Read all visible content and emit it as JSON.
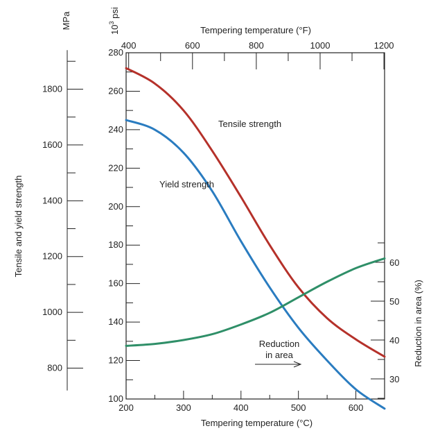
{
  "chart_data": {
    "type": "line",
    "x_bottom": {
      "label": "Tempering temperature (°C)",
      "range": [
        200,
        650
      ],
      "ticks": [
        200,
        300,
        400,
        500,
        600
      ]
    },
    "x_top": {
      "label": "Tempering temperature (°F)",
      "ticks": [
        400,
        600,
        800,
        1000,
        1200
      ]
    },
    "y_left_psi": {
      "unit": "10",
      "unit_exp": "3",
      "unit_suffix": "psi",
      "range": [
        100,
        280
      ],
      "ticks": [
        100,
        120,
        140,
        160,
        180,
        200,
        220,
        240,
        260,
        280
      ]
    },
    "y_left_mpa": {
      "unit": "MPa",
      "label": "Tensile and yield strength",
      "ticks": [
        800,
        1000,
        1200,
        1400,
        1600,
        1800
      ]
    },
    "y_right": {
      "label": "Reduction in area (%)",
      "ticks": [
        30,
        40,
        50,
        60
      ]
    },
    "series": [
      {
        "name": "Tensile strength",
        "axis": "y_left_psi",
        "color": "#b5312a",
        "x": [
          200,
          250,
          300,
          350,
          400,
          450,
          500,
          550,
          600,
          650
        ],
        "y": [
          272,
          264,
          250,
          229,
          205,
          180,
          158,
          142,
          131,
          122
        ]
      },
      {
        "name": "Yield strength",
        "axis": "y_left_psi",
        "color": "#2a7cc0",
        "x": [
          200,
          250,
          300,
          350,
          400,
          450,
          500,
          550,
          600,
          650
        ],
        "y": [
          245,
          240,
          228,
          208,
          182,
          158,
          137,
          120,
          105,
          95
        ]
      },
      {
        "name": "Reduction in area",
        "label_lines": [
          "Reduction",
          "in area"
        ],
        "axis": "y_right",
        "color": "#2f8f68",
        "x": [
          200,
          250,
          300,
          350,
          400,
          450,
          500,
          550,
          600,
          650
        ],
        "y": [
          38.5,
          39,
          40,
          41.5,
          44,
          47,
          51,
          55,
          58.5,
          61
        ]
      }
    ]
  }
}
